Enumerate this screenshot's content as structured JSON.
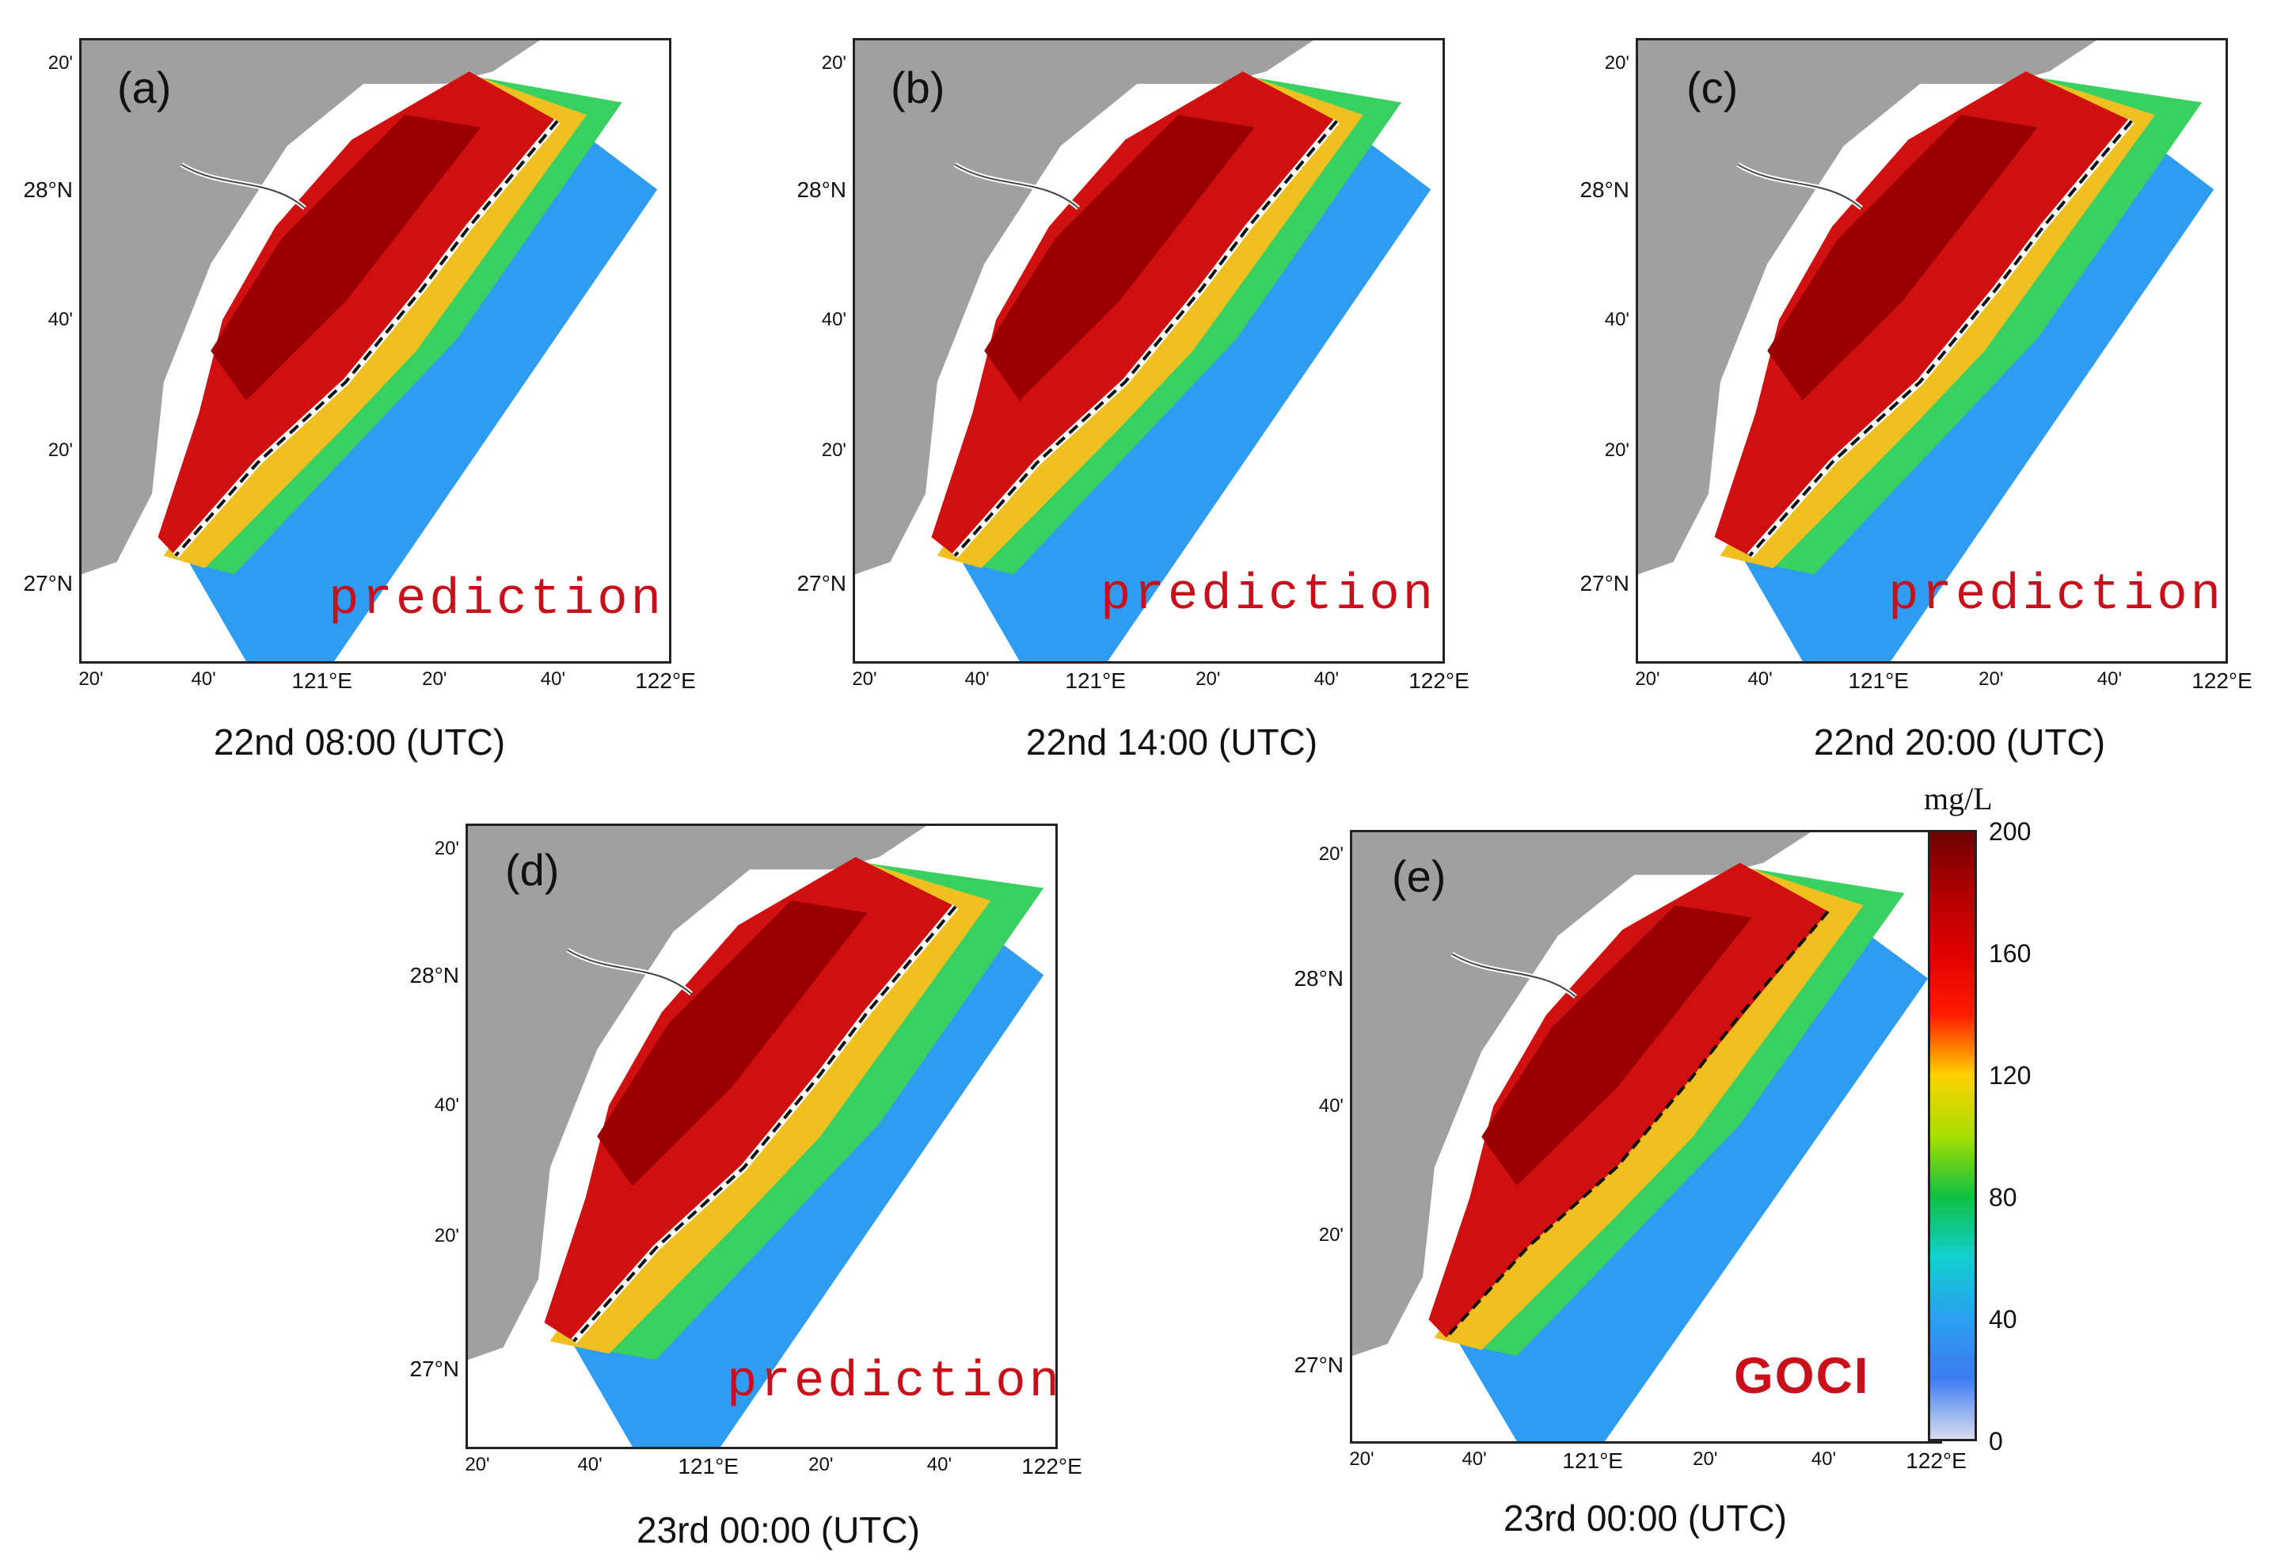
{
  "axes": {
    "lat_labels": [
      "20'",
      "28°N",
      "40'",
      "20'",
      "27°N"
    ],
    "lon_labels": [
      "20'",
      "40'",
      "121°E",
      "20'",
      "40'",
      "122°E"
    ]
  },
  "panels": [
    {
      "id": "a",
      "label": "(a)",
      "mode": "prediction",
      "caption": "22nd 08:00 (UTC)"
    },
    {
      "id": "b",
      "label": "(b)",
      "mode": "prediction",
      "caption": "22nd 14:00 (UTC)"
    },
    {
      "id": "c",
      "label": "(c)",
      "mode": "prediction",
      "caption": "22nd 20:00 (UTC)"
    },
    {
      "id": "d",
      "label": "(d)",
      "mode": "prediction",
      "caption": "23rd 00:00 (UTC)"
    },
    {
      "id": "e",
      "label": "(e)",
      "mode": "GOCI",
      "caption": "23rd 00:00 (UTC)"
    }
  ],
  "colorbar": {
    "unit": "mg/L",
    "ticks": [
      "200",
      "160",
      "120",
      "80",
      "40",
      "0"
    ],
    "stops": [
      "#6e0000",
      "#b10000",
      "#e00000",
      "#ff1a00",
      "#ffd200",
      "#a8e000",
      "#10c040",
      "#10d0d0",
      "#2aa0f0",
      "#3c7cf0",
      "#d8dcf0"
    ]
  },
  "colors": {
    "land": "#a0a0a0",
    "sea": "#2e9cf0",
    "plume": "#d01010",
    "front": "#111111"
  }
}
